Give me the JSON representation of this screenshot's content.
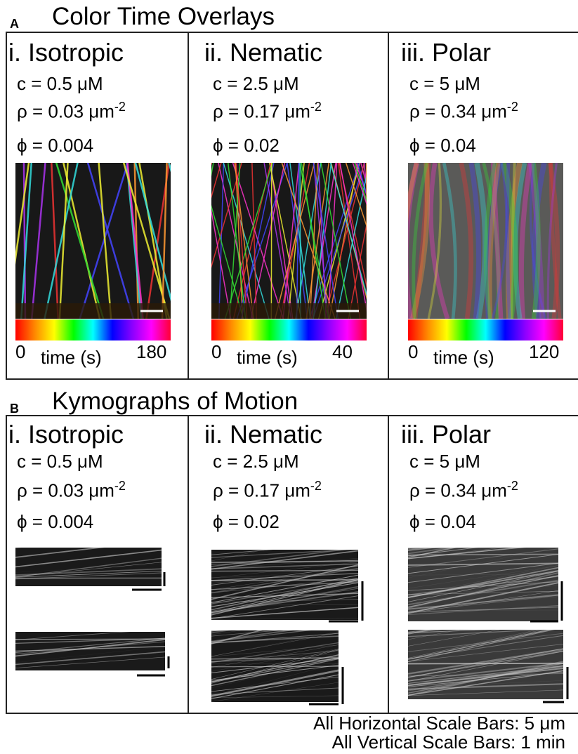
{
  "panel_a": {
    "label": "A",
    "title": "Color Time Overlays",
    "columns": [
      {
        "title": "i. Isotropic",
        "c": "c = 0.5 μM",
        "rho": "ρ = 0.03 μm",
        "rho_exp": "-2",
        "phi": "ϕ = 0.004",
        "colorbar": {
          "min": "0",
          "label": "time (s)",
          "max": "180"
        }
      },
      {
        "title": "ii. Nematic",
        "c": "c = 2.5 μM",
        "rho": "ρ = 0.17 μm",
        "rho_exp": "-2",
        "phi": "ϕ = 0.02",
        "colorbar": {
          "min": "0",
          "label": "time (s)",
          "max": "40"
        }
      },
      {
        "title": "iii. Polar",
        "c": "c = 5 μM",
        "rho": "ρ = 0.34 μm",
        "rho_exp": "-2",
        "phi": "ϕ = 0.04",
        "colorbar": {
          "min": "0",
          "label": "time (s)",
          "max": "120"
        }
      }
    ]
  },
  "panel_b": {
    "label": "B",
    "title": "Kymographs of Motion",
    "columns": [
      {
        "title": "i. Isotropic",
        "c": "c = 0.5 μM",
        "rho": "ρ = 0.03 μm",
        "rho_exp": "-2",
        "phi": "ϕ = 0.004"
      },
      {
        "title": "ii. Nematic",
        "c": "c = 2.5 μM",
        "rho": "ρ = 0.17 μm",
        "rho_exp": "-2",
        "phi": "ϕ = 0.02"
      },
      {
        "title": "iii. Polar",
        "c": "c = 5 μM",
        "rho": "ρ = 0.34 μm",
        "rho_exp": "-2",
        "phi": "ϕ = 0.04"
      }
    ]
  },
  "footer": [
    "All Horizontal Scale Bars: 5 μm",
    "All Vertical Scale Bars: 1 min"
  ]
}
